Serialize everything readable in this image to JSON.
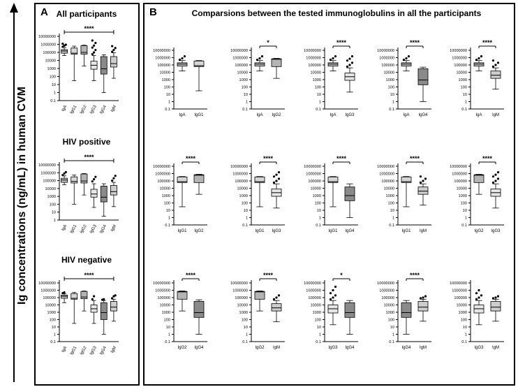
{
  "figure": {
    "y_axis_title": "Ig concentrations (ng/mL) in human CVM",
    "panel_a_letter": "A",
    "panel_b_letter": "B",
    "panel_b_title": "Comparsions between the tested immunoglobulins in all the participants"
  },
  "colors": {
    "IgA": "#c4c4c4",
    "IgG1": "#d6d6d6",
    "IgG2": "#b4b4b4",
    "IgG3": "#e6e6e6",
    "IgG4": "#8a8a8a",
    "IgM": "#cdcdcd",
    "outlier": "#000000"
  },
  "chart_data": [
    {
      "type": "box",
      "panel": "A",
      "title": "All participants",
      "scale": "log10",
      "ylim": [
        0.1,
        10000000
      ],
      "yticks": [
        "0.1",
        "1",
        "10",
        "100",
        "1000",
        "10000",
        "100000",
        "1000000",
        "10000000"
      ],
      "yticklabels": [
        "0.1",
        "1",
        "10",
        "100",
        "1000",
        "10000",
        "100000",
        "1000000",
        "10000000"
      ],
      "categories": [
        "IgA",
        "IgG1",
        "IgG2",
        "IgG3",
        "IgG4",
        "IgM"
      ],
      "boxes": [
        {
          "name": "IgA",
          "min": 40000,
          "q1": 80000,
          "median": 150000,
          "q3": 220000,
          "max": 400000,
          "outliers": [
            500000,
            700000,
            900000,
            1200000
          ]
        },
        {
          "name": "IgG1",
          "min": 30,
          "q1": 60000,
          "median": 80000,
          "q3": 350000,
          "max": 600000,
          "outliers": []
        },
        {
          "name": "IgG2",
          "min": 2000,
          "q1": 60000,
          "median": 100000,
          "q3": 700000,
          "max": 800000,
          "outliers": []
        },
        {
          "name": "IgG3",
          "min": 30,
          "q1": 800,
          "median": 2500,
          "q3": 8000,
          "max": 40000,
          "outliers": [
            60000,
            100000,
            200000,
            400000,
            700000,
            1500000,
            3000000
          ]
        },
        {
          "name": "IgG4",
          "min": 1,
          "q1": 200,
          "median": 900,
          "q3": 30000,
          "max": 50000,
          "outliers": []
        },
        {
          "name": "IgM",
          "min": 60,
          "q1": 1500,
          "median": 4000,
          "q3": 30000,
          "max": 90000,
          "outliers": [
            120000,
            200000,
            350000,
            600000
          ]
        }
      ],
      "significance": [
        {
          "label": "****",
          "from": "IgA",
          "to": "IgM"
        }
      ]
    },
    {
      "type": "box",
      "panel": "A",
      "title": "HIV positive",
      "scale": "log10",
      "ylim": [
        1,
        10000000
      ],
      "yticks": [
        "1",
        "10",
        "100",
        "1000",
        "10000",
        "100000",
        "1000000",
        "10000000"
      ],
      "yticklabels": [
        "1",
        "10",
        "100",
        "1000",
        "10000",
        "100000",
        "1000000",
        "10000000"
      ],
      "categories": [
        "IgA",
        "IgG1",
        "IgG2",
        "IgG3",
        "IgG4",
        "IgM"
      ],
      "boxes": [
        {
          "name": "IgA",
          "min": 30000,
          "q1": 60000,
          "median": 120000,
          "q3": 200000,
          "max": 400000,
          "outliers": [
            500000,
            800000,
            1200000
          ]
        },
        {
          "name": "IgG1",
          "min": 100,
          "q1": 50000,
          "median": 80000,
          "q3": 300000,
          "max": 500000,
          "outliers": []
        },
        {
          "name": "IgG2",
          "min": 1500,
          "q1": 50000,
          "median": 90000,
          "q3": 700000,
          "max": 800000,
          "outliers": []
        },
        {
          "name": "IgG3",
          "min": 40,
          "q1": 800,
          "median": 2000,
          "q3": 8000,
          "max": 40000,
          "outliers": [
            80000,
            150000,
            300000
          ]
        },
        {
          "name": "IgG4",
          "min": 3,
          "q1": 200,
          "median": 800,
          "q3": 20000,
          "max": 40000,
          "outliers": []
        },
        {
          "name": "IgM",
          "min": 50,
          "q1": 1500,
          "median": 4000,
          "q3": 25000,
          "max": 60000,
          "outliers": [
            100000,
            200000,
            400000
          ]
        }
      ],
      "significance": [
        {
          "label": "****",
          "from": "IgA",
          "to": "IgM"
        }
      ]
    },
    {
      "type": "box",
      "panel": "A",
      "title": "HIV negative",
      "scale": "log10",
      "ylim": [
        0.1,
        10000000
      ],
      "yticks": [
        "0.1",
        "1",
        "10",
        "100",
        "1000",
        "10000",
        "100000",
        "1000000",
        "10000000"
      ],
      "yticklabels": [
        "0.1",
        "1",
        "10",
        "100",
        "1000",
        "10000",
        "100000",
        "1000000",
        "10000000"
      ],
      "categories": [
        "IgA",
        "IgG1",
        "IgG2",
        "IgG3",
        "IgG4",
        "IgM"
      ],
      "boxes": [
        {
          "name": "IgA",
          "min": 20000,
          "q1": 80000,
          "median": 150000,
          "q3": 220000,
          "max": 350000,
          "outliers": [
            400000,
            500000
          ]
        },
        {
          "name": "IgG1",
          "min": 30,
          "q1": 60000,
          "median": 80000,
          "q3": 350000,
          "max": 500000,
          "outliers": []
        },
        {
          "name": "IgG2",
          "min": 1500,
          "q1": 70000,
          "median": 120000,
          "q3": 700000,
          "max": 800000,
          "outliers": []
        },
        {
          "name": "IgG3",
          "min": 30,
          "q1": 1000,
          "median": 3000,
          "q3": 10000,
          "max": 40000,
          "outliers": [
            60000,
            150000
          ]
        },
        {
          "name": "IgG4",
          "min": 1,
          "q1": 100,
          "median": 900,
          "q3": 20000,
          "max": 40000,
          "outliers": [
            50000,
            60000
          ]
        },
        {
          "name": "IgM",
          "min": 60,
          "q1": 1500,
          "median": 5000,
          "q3": 30000,
          "max": 60000,
          "outliers": [
            80000,
            150000,
            200000
          ]
        }
      ],
      "significance": [
        {
          "label": "****",
          "from": "IgA",
          "to": "IgM"
        }
      ]
    },
    {
      "type": "box",
      "panel": "B",
      "scale": "log10",
      "ylim": [
        0.1,
        10000000
      ],
      "categories": [
        "IgA",
        "IgG1"
      ],
      "boxes": [
        {
          "name": "IgA",
          "min": 15000,
          "q1": 70000,
          "median": 130000,
          "q3": 200000,
          "max": 400000,
          "outliers": [
            500000,
            800000,
            1500000
          ]
        },
        {
          "name": "IgG1",
          "min": 30,
          "q1": 60000,
          "median": 80000,
          "q3": 350000,
          "max": 400000,
          "outliers": []
        }
      ],
      "significance": []
    },
    {
      "type": "box",
      "panel": "B",
      "scale": "log10",
      "ylim": [
        0.1,
        10000000
      ],
      "categories": [
        "IgA",
        "IgG2"
      ],
      "boxes": [
        {
          "name": "IgA",
          "min": 15000,
          "q1": 70000,
          "median": 130000,
          "q3": 200000,
          "max": 400000,
          "outliers": [
            500000,
            800000,
            1500000
          ]
        },
        {
          "name": "IgG2",
          "min": 1500,
          "q1": 60000,
          "median": 600000,
          "q3": 700000,
          "max": 800000,
          "outliers": []
        }
      ],
      "significance": [
        {
          "label": "*",
          "from": "IgA",
          "to": "IgG2"
        }
      ]
    },
    {
      "type": "box",
      "panel": "B",
      "scale": "log10",
      "ylim": [
        0.1,
        10000000
      ],
      "categories": [
        "IgA",
        "IgG3"
      ],
      "boxes": [
        {
          "name": "IgA",
          "min": 15000,
          "q1": 70000,
          "median": 130000,
          "q3": 200000,
          "max": 400000,
          "outliers": [
            500000,
            800000,
            1500000
          ]
        },
        {
          "name": "IgG3",
          "min": 20,
          "q1": 800,
          "median": 2500,
          "q3": 8000,
          "max": 40000,
          "outliers": [
            60000,
            100000,
            200000,
            400000,
            700000,
            1500000
          ]
        }
      ],
      "significance": [
        {
          "label": "****",
          "from": "IgA",
          "to": "IgG3"
        }
      ]
    },
    {
      "type": "box",
      "panel": "B",
      "scale": "log10",
      "ylim": [
        0.1,
        10000000
      ],
      "categories": [
        "IgA",
        "IgG4"
      ],
      "boxes": [
        {
          "name": "IgA",
          "min": 15000,
          "q1": 70000,
          "median": 130000,
          "q3": 200000,
          "max": 400000,
          "outliers": [
            500000,
            800000,
            1500000
          ]
        },
        {
          "name": "IgG4",
          "min": 1,
          "q1": 200,
          "median": 900,
          "q3": 30000,
          "max": 50000,
          "outliers": []
        }
      ],
      "significance": [
        {
          "label": "****",
          "from": "IgA",
          "to": "IgG4"
        }
      ]
    },
    {
      "type": "box",
      "panel": "B",
      "scale": "log10",
      "ylim": [
        0.1,
        10000000
      ],
      "categories": [
        "IgA",
        "IgM"
      ],
      "boxes": [
        {
          "name": "IgA",
          "min": 15000,
          "q1": 70000,
          "median": 130000,
          "q3": 200000,
          "max": 400000,
          "outliers": [
            500000,
            800000,
            1500000
          ]
        },
        {
          "name": "IgM",
          "min": 50,
          "q1": 1500,
          "median": 4000,
          "q3": 15000,
          "max": 40000,
          "outliers": [
            60000,
            100000,
            200000,
            400000
          ]
        }
      ],
      "significance": [
        {
          "label": "****",
          "from": "IgA",
          "to": "IgM"
        }
      ]
    },
    {
      "type": "box",
      "panel": "B",
      "scale": "log10",
      "ylim": [
        0.1,
        10000000
      ],
      "categories": [
        "IgG1",
        "IgG2"
      ],
      "boxes": [
        {
          "name": "IgG1",
          "min": 30,
          "q1": 60000,
          "median": 80000,
          "q3": 350000,
          "max": 400000,
          "outliers": []
        },
        {
          "name": "IgG2",
          "min": 1500,
          "q1": 60000,
          "median": 600000,
          "q3": 700000,
          "max": 800000,
          "outliers": []
        }
      ],
      "significance": [
        {
          "label": "****",
          "from": "IgG1",
          "to": "IgG2"
        }
      ]
    },
    {
      "type": "box",
      "panel": "B",
      "scale": "log10",
      "ylim": [
        0.1,
        10000000
      ],
      "categories": [
        "IgG1",
        "IgG3"
      ],
      "boxes": [
        {
          "name": "IgG1",
          "min": 30,
          "q1": 60000,
          "median": 80000,
          "q3": 350000,
          "max": 400000,
          "outliers": []
        },
        {
          "name": "IgG3",
          "min": 20,
          "q1": 800,
          "median": 2500,
          "q3": 8000,
          "max": 40000,
          "outliers": [
            60000,
            100000,
            200000,
            400000,
            700000,
            1500000
          ]
        }
      ],
      "significance": [
        {
          "label": "****",
          "from": "IgG1",
          "to": "IgG3"
        }
      ]
    },
    {
      "type": "box",
      "panel": "B",
      "scale": "log10",
      "ylim": [
        0.1,
        10000000
      ],
      "categories": [
        "IgG1",
        "IgG4"
      ],
      "boxes": [
        {
          "name": "IgG1",
          "min": 30,
          "q1": 60000,
          "median": 80000,
          "q3": 350000,
          "max": 400000,
          "outliers": []
        },
        {
          "name": "IgG4",
          "min": 1,
          "q1": 200,
          "median": 1000,
          "q3": 15000,
          "max": 40000,
          "outliers": []
        }
      ],
      "significance": [
        {
          "label": "****",
          "from": "IgG1",
          "to": "IgG4"
        }
      ]
    },
    {
      "type": "box",
      "panel": "B",
      "scale": "log10",
      "ylim": [
        0.1,
        10000000
      ],
      "categories": [
        "IgG1",
        "IgM"
      ],
      "boxes": [
        {
          "name": "IgG1",
          "min": 30,
          "q1": 60000,
          "median": 80000,
          "q3": 350000,
          "max": 400000,
          "outliers": []
        },
        {
          "name": "IgM",
          "min": 50,
          "q1": 1500,
          "median": 4000,
          "q3": 15000,
          "max": 40000,
          "outliers": [
            60000,
            100000,
            200000,
            400000
          ]
        }
      ],
      "significance": [
        {
          "label": "****",
          "from": "IgG1",
          "to": "IgM"
        }
      ]
    },
    {
      "type": "box",
      "panel": "B",
      "scale": "log10",
      "ylim": [
        0.1,
        10000000
      ],
      "categories": [
        "IgG2",
        "IgG3"
      ],
      "boxes": [
        {
          "name": "IgG2",
          "min": 1500,
          "q1": 60000,
          "median": 600000,
          "q3": 700000,
          "max": 800000,
          "outliers": []
        },
        {
          "name": "IgG3",
          "min": 20,
          "q1": 800,
          "median": 2500,
          "q3": 8000,
          "max": 40000,
          "outliers": [
            60000,
            100000,
            200000,
            400000,
            700000,
            1500000
          ]
        }
      ],
      "significance": [
        {
          "label": "****",
          "from": "IgG2",
          "to": "IgG3"
        }
      ]
    },
    {
      "type": "box",
      "panel": "B",
      "scale": "log10",
      "ylim": [
        0.1,
        10000000
      ],
      "categories": [
        "IgG2",
        "IgG4"
      ],
      "boxes": [
        {
          "name": "IgG2",
          "min": 1500,
          "q1": 60000,
          "median": 600000,
          "q3": 700000,
          "max": 800000,
          "outliers": []
        },
        {
          "name": "IgG4",
          "min": 1,
          "q1": 200,
          "median": 900,
          "q3": 30000,
          "max": 50000,
          "outliers": []
        }
      ],
      "significance": [
        {
          "label": "****",
          "from": "IgG2",
          "to": "IgG4"
        }
      ]
    },
    {
      "type": "box",
      "panel": "B",
      "scale": "log10",
      "ylim": [
        0.1,
        10000000
      ],
      "categories": [
        "IgG2",
        "IgM"
      ],
      "boxes": [
        {
          "name": "IgG2",
          "min": 1500,
          "q1": 60000,
          "median": 600000,
          "q3": 700000,
          "max": 800000,
          "outliers": []
        },
        {
          "name": "IgM",
          "min": 50,
          "q1": 1500,
          "median": 4000,
          "q3": 15000,
          "max": 40000,
          "outliers": [
            60000,
            100000,
            200000
          ]
        }
      ],
      "significance": [
        {
          "label": "****",
          "from": "IgG2",
          "to": "IgM"
        }
      ]
    },
    {
      "type": "box",
      "panel": "B",
      "scale": "log10",
      "ylim": [
        0.1,
        10000000
      ],
      "categories": [
        "IgG3",
        "IgG4"
      ],
      "boxes": [
        {
          "name": "IgG3",
          "min": 20,
          "q1": 800,
          "median": 3000,
          "q3": 10000,
          "max": 40000,
          "outliers": [
            60000,
            100000,
            200000,
            400000,
            1000000,
            3000000
          ]
        },
        {
          "name": "IgG4",
          "min": 1,
          "q1": 200,
          "median": 900,
          "q3": 20000,
          "max": 40000,
          "outliers": []
        }
      ],
      "significance": [
        {
          "label": "*",
          "from": "IgG3",
          "to": "IgG4"
        }
      ]
    },
    {
      "type": "box",
      "panel": "B",
      "scale": "log10",
      "ylim": [
        0.1,
        10000000
      ],
      "categories": [
        "IgG4",
        "IgM"
      ],
      "boxes": [
        {
          "name": "IgG4",
          "min": 1,
          "q1": 200,
          "median": 900,
          "q3": 20000,
          "max": 40000,
          "outliers": []
        },
        {
          "name": "IgM",
          "min": 60,
          "q1": 1500,
          "median": 5000,
          "q3": 30000,
          "max": 60000,
          "outliers": [
            80000,
            100000,
            150000
          ]
        }
      ],
      "significance": [
        {
          "label": "****",
          "from": "IgG4",
          "to": "IgM"
        }
      ]
    },
    {
      "type": "box",
      "panel": "B",
      "scale": "log10",
      "ylim": [
        0.1,
        10000000
      ],
      "categories": [
        "IgG3",
        "IgM"
      ],
      "boxes": [
        {
          "name": "IgG3",
          "min": 20,
          "q1": 800,
          "median": 3000,
          "q3": 10000,
          "max": 40000,
          "outliers": [
            60000,
            100000,
            200000,
            400000,
            1000000
          ]
        },
        {
          "name": "IgM",
          "min": 60,
          "q1": 1500,
          "median": 5000,
          "q3": 30000,
          "max": 60000,
          "outliers": [
            80000,
            100000,
            150000
          ]
        }
      ],
      "significance": []
    }
  ]
}
